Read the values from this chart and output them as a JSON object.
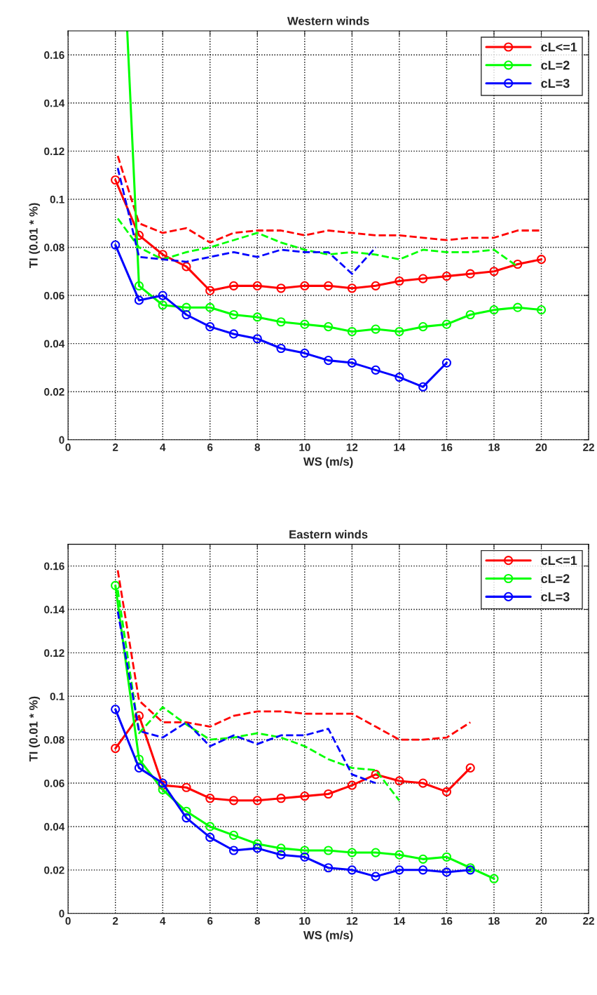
{
  "chart_data": [
    {
      "type": "line",
      "title": "Western winds",
      "xlabel": "WS (m/s)",
      "ylabel": "TI (0.01 * %)",
      "x": [
        2,
        3,
        4,
        5,
        6,
        7,
        8,
        9,
        10,
        11,
        12,
        13,
        14,
        15,
        16,
        17,
        18,
        19,
        20
      ],
      "series": [
        {
          "name": "cL<=1",
          "color": "#ff0000",
          "marker": "circle",
          "line_style": "solid",
          "values": [
            0.108,
            0.085,
            0.077,
            0.072,
            0.062,
            0.064,
            0.064,
            0.063,
            0.064,
            0.064,
            0.063,
            0.064,
            0.066,
            0.067,
            0.068,
            0.069,
            0.07,
            0.073,
            0.075
          ]
        },
        {
          "name": "cL=2",
          "color": "#00ff00",
          "marker": "circle",
          "line_style": "solid",
          "values": [
            null,
            0.064,
            0.056,
            0.055,
            0.055,
            0.052,
            0.051,
            0.049,
            0.048,
            0.047,
            0.045,
            0.046,
            0.045,
            0.047,
            0.048,
            0.052,
            0.054,
            0.055,
            0.054
          ]
        },
        {
          "name": "cL=3",
          "color": "#0000ff",
          "marker": "circle",
          "line_style": "solid",
          "values": [
            0.081,
            0.058,
            0.06,
            0.052,
            0.047,
            0.044,
            0.042,
            0.038,
            0.036,
            0.033,
            0.032,
            0.029,
            0.026,
            0.022,
            0.032,
            null,
            null,
            null,
            null
          ]
        },
        {
          "color": "#ff0000",
          "marker": "none",
          "line_style": "dashed",
          "x": [
            2.1,
            3,
            4,
            5,
            6,
            7,
            8,
            9,
            10,
            11,
            12,
            13,
            14,
            15,
            16,
            17,
            18,
            19,
            20
          ],
          "values": [
            0.118,
            0.09,
            0.086,
            0.088,
            0.082,
            0.086,
            0.087,
            0.087,
            0.085,
            0.087,
            0.086,
            0.085,
            0.085,
            0.084,
            0.083,
            0.084,
            0.084,
            0.087,
            0.087
          ]
        },
        {
          "color": "#00ff00",
          "marker": "none",
          "line_style": "dashed",
          "x": [
            2.1,
            3,
            4,
            5,
            6,
            7,
            8,
            9,
            10,
            11,
            12,
            13,
            14,
            15,
            16,
            17,
            18,
            19
          ],
          "values": [
            0.092,
            0.08,
            0.075,
            0.078,
            0.08,
            0.083,
            0.086,
            0.082,
            0.079,
            0.077,
            0.078,
            0.077,
            0.075,
            0.079,
            0.078,
            0.078,
            0.079,
            0.072
          ]
        },
        {
          "color": "#00ff00",
          "marker": "none",
          "line_style": "solid",
          "x": [
            2.5,
            3
          ],
          "values": [
            0.17,
            0.064
          ]
        },
        {
          "color": "#0000ff",
          "marker": "none",
          "line_style": "dashed",
          "x": [
            2.1,
            3,
            4,
            5,
            6,
            7,
            8,
            9,
            10,
            11,
            12,
            13
          ],
          "values": [
            0.113,
            0.076,
            0.075,
            0.074,
            0.076,
            0.078,
            0.076,
            0.079,
            0.078,
            0.078,
            0.069,
            0.08
          ]
        }
      ],
      "xlim": [
        0,
        22
      ],
      "xticks": [
        0,
        2,
        4,
        6,
        8,
        10,
        12,
        14,
        16,
        18,
        20,
        22
      ],
      "ylim": [
        0,
        0.17
      ],
      "yticks": [
        0,
        0.02,
        0.04,
        0.06,
        0.08,
        {
          "value": 0.1,
          "label": "0.1"
        },
        0.12,
        0.14,
        0.16
      ],
      "grid": true,
      "legend": "top right"
    },
    {
      "type": "line",
      "title": "Eastern winds",
      "xlabel": "WS (m/s)",
      "ylabel": "TI (0.01 * %)",
      "x": [
        2,
        3,
        4,
        5,
        6,
        7,
        8,
        9,
        10,
        11,
        12,
        13,
        14,
        15,
        16,
        17,
        18
      ],
      "series": [
        {
          "name": "cL<=1",
          "color": "#ff0000",
          "marker": "circle",
          "line_style": "solid",
          "values": [
            0.076,
            0.091,
            0.059,
            0.058,
            0.053,
            0.052,
            0.052,
            0.053,
            0.054,
            0.055,
            0.059,
            0.064,
            0.061,
            0.06,
            0.056,
            0.067,
            null
          ]
        },
        {
          "name": "cL=2",
          "color": "#00ff00",
          "marker": "circle",
          "line_style": "solid",
          "values": [
            0.151,
            0.071,
            0.057,
            0.047,
            0.04,
            0.036,
            0.032,
            0.03,
            0.029,
            0.029,
            0.028,
            0.028,
            0.027,
            0.025,
            0.026,
            0.021,
            0.016
          ]
        },
        {
          "name": "cL=3",
          "color": "#0000ff",
          "marker": "circle",
          "line_style": "solid",
          "values": [
            0.094,
            0.067,
            0.06,
            0.044,
            0.035,
            0.029,
            0.03,
            0.027,
            0.026,
            0.021,
            0.02,
            0.017,
            0.02,
            0.02,
            0.019,
            0.02,
            null
          ]
        },
        {
          "color": "#ff0000",
          "marker": "none",
          "line_style": "dashed",
          "x": [
            2.1,
            3,
            4,
            5,
            6,
            7,
            8,
            9,
            10,
            11,
            12,
            13,
            14,
            15,
            16,
            17
          ],
          "values": [
            0.158,
            0.098,
            0.088,
            0.088,
            0.086,
            0.091,
            0.093,
            0.093,
            0.092,
            0.092,
            0.092,
            0.086,
            0.08,
            0.08,
            0.081,
            0.088
          ]
        },
        {
          "color": "#00ff00",
          "marker": "none",
          "line_style": "dashed",
          "x": [
            2.1,
            3,
            4,
            5,
            6,
            7,
            8,
            9,
            10,
            11,
            12,
            13,
            14
          ],
          "values": [
            0.149,
            0.083,
            0.095,
            0.087,
            0.08,
            0.081,
            0.083,
            0.081,
            0.077,
            0.071,
            0.067,
            0.066,
            0.052
          ]
        },
        {
          "color": "#0000ff",
          "marker": "none",
          "line_style": "dashed",
          "x": [
            2.1,
            3,
            4,
            5,
            6,
            7,
            8,
            9,
            10,
            11,
            12,
            13
          ],
          "values": [
            0.139,
            0.084,
            0.081,
            0.088,
            0.077,
            0.082,
            0.078,
            0.082,
            0.082,
            0.085,
            0.064,
            0.06
          ]
        }
      ],
      "xlim": [
        0,
        22
      ],
      "xticks": [
        0,
        2,
        4,
        6,
        8,
        10,
        12,
        14,
        16,
        18,
        20,
        22
      ],
      "ylim": [
        0,
        0.17
      ],
      "yticks": [
        0,
        0.02,
        0.04,
        0.06,
        0.08,
        {
          "value": 0.1,
          "label": "0.1"
        },
        0.12,
        0.14,
        0.16
      ],
      "grid": true,
      "legend": "top right"
    }
  ]
}
